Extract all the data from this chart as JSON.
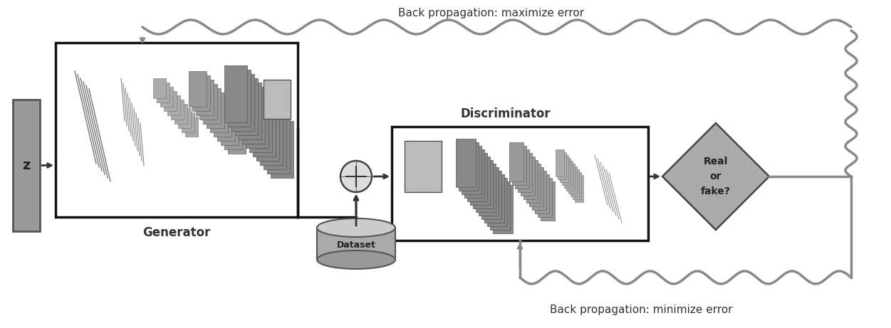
{
  "bg_color": "#ffffff",
  "gray_z": "#999999",
  "gray_gen_box": "#ffffff",
  "gray_disc_box": "#ffffff",
  "gray_layer_light": "#bbbbbb",
  "gray_layer_mid": "#999999",
  "gray_layer_dark": "#777777",
  "gray_output": "#bbbbbb",
  "gray_circle": "#cccccc",
  "gray_cylinder_body": "#aaaaaa",
  "gray_cylinder_top": "#cccccc",
  "gray_cylinder_bot": "#888888",
  "gray_diamond": "#aaaaaa",
  "wavy_color": "#888888",
  "arrow_color": "#333333",
  "edge_color": "#333333",
  "text_color": "#333333",
  "title_fontsize": 11,
  "label_fontsize": 12,
  "back_prop_max_text": "Back propagation: maximize error",
  "back_prop_min_text": "Back propagation: minimize error",
  "generator_label": "Generator",
  "discriminator_label": "Discriminator",
  "dataset_label": "Dataset",
  "z_label": "z",
  "real_or_fake_text": "Real\nor\nfake?"
}
